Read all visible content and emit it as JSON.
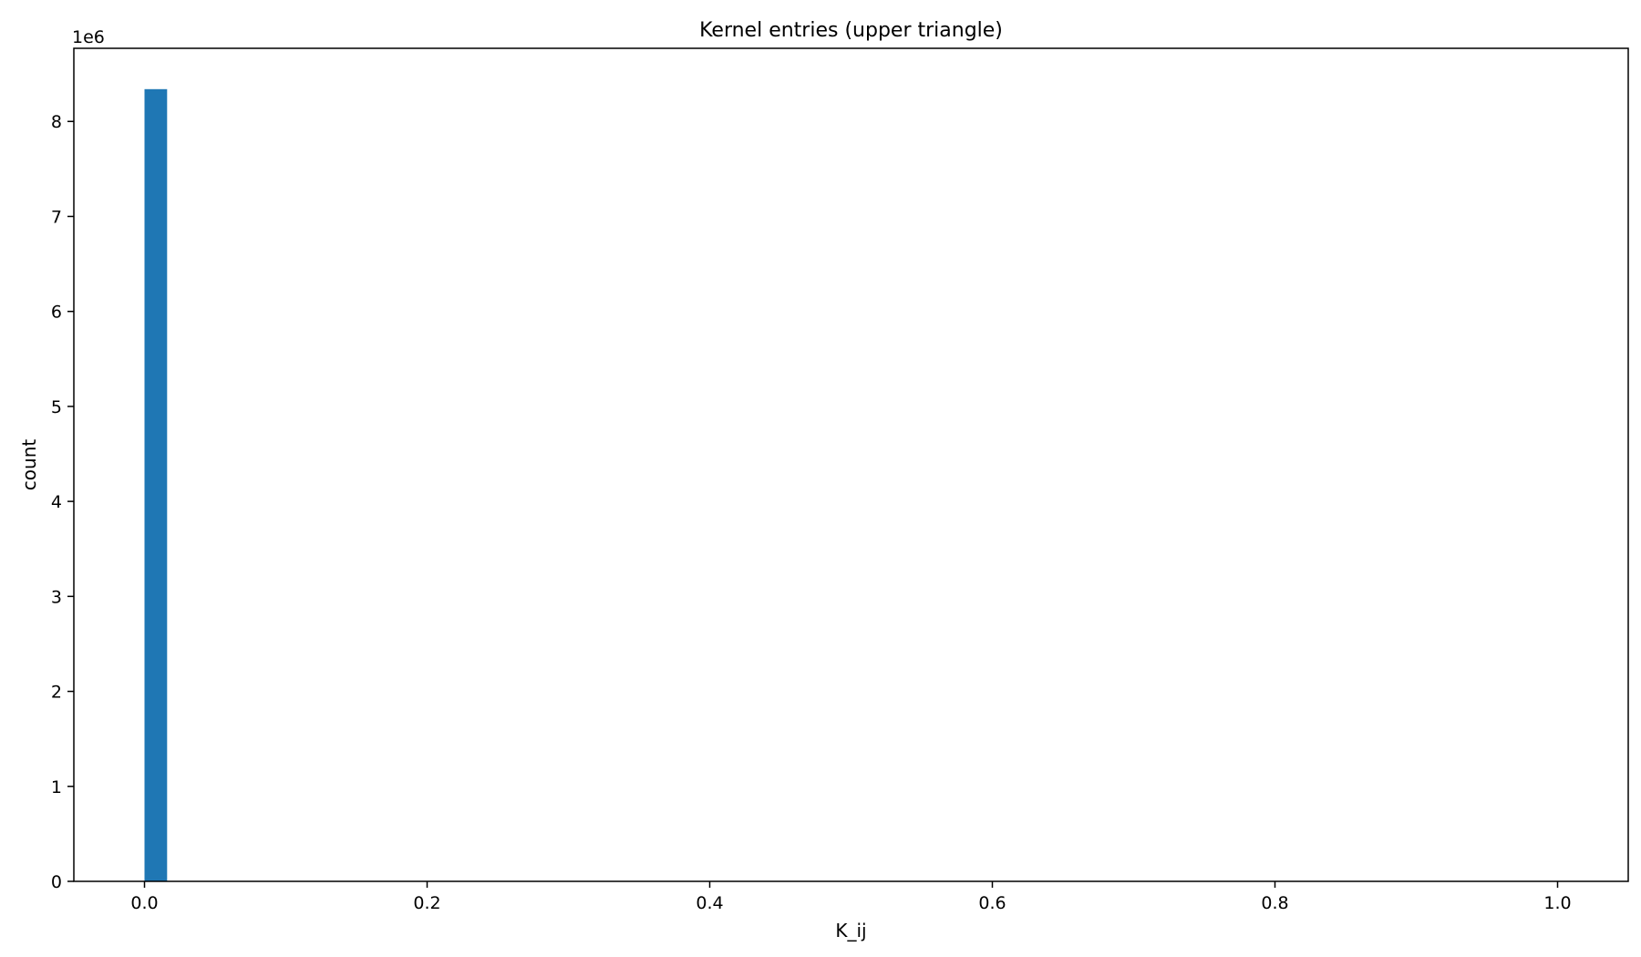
{
  "chart_data": {
    "type": "bar",
    "title": "Kernel entries (upper triangle)",
    "xlabel": "K_ij",
    "ylabel": "count",
    "y_offset_text": "1e6",
    "y_scale": 1000000,
    "xlim": [
      -0.05,
      1.05
    ],
    "ylim": [
      0,
      8.77
    ],
    "grid": false,
    "legend": "none",
    "x_ticks": [
      0.0,
      0.2,
      0.4,
      0.6,
      0.8,
      1.0
    ],
    "x_tick_labels": [
      "0.0",
      "0.2",
      "0.4",
      "0.6",
      "0.8",
      "1.0"
    ],
    "y_ticks": [
      0,
      1,
      2,
      3,
      4,
      5,
      6,
      7,
      8
    ],
    "y_tick_labels": [
      "0",
      "1",
      "2",
      "3",
      "4",
      "5",
      "6",
      "7",
      "8"
    ],
    "bar_color": "#1f77b4",
    "bins": [
      {
        "x0": 0.0,
        "x1": 0.016,
        "value": 8.34
      }
    ]
  }
}
